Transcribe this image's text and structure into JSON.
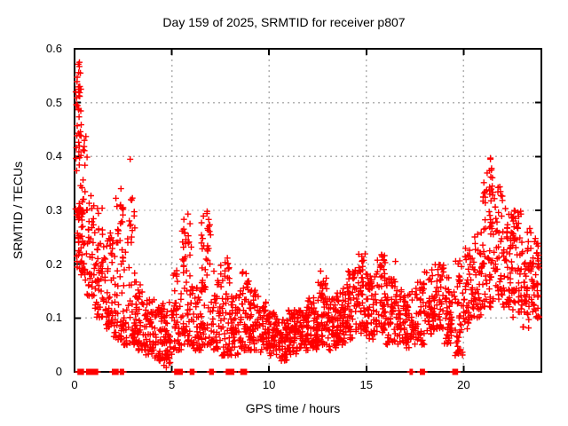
{
  "chart_data": {
    "type": "scatter",
    "title": "Day 159 of 2025, SRMTID for receiver p807",
    "xlabel": "GPS time / hours",
    "ylabel": "SRMTID / TECUs",
    "xlim": [
      0,
      24
    ],
    "ylim": [
      0,
      0.6
    ],
    "xticks": [
      0,
      5,
      10,
      15,
      20
    ],
    "yticks": [
      0,
      0.1,
      0.2,
      0.3,
      0.4,
      0.5,
      0.6
    ],
    "grid": "dashed at all major x and y ticks",
    "legend": "none",
    "marker": "plus",
    "marker_color": "#ff0000",
    "grid_color": "#b2b2b2",
    "axis_color": "#000000",
    "background": "#ffffff",
    "random_seed": 9,
    "scatter_density_bins": {
      "columns": [
        "x_start",
        "x_end",
        "y_min",
        "y_max",
        "count",
        "low_bias"
      ],
      "rows": [
        [
          0.05,
          0.35,
          0.2,
          0.575,
          45,
          1.2
        ],
        [
          0.05,
          0.5,
          0.18,
          0.31,
          30,
          1.0
        ],
        [
          0.35,
          0.65,
          0.17,
          0.46,
          25,
          1.6
        ],
        [
          0.6,
          1.0,
          0.14,
          0.33,
          40,
          1.4
        ],
        [
          1.0,
          1.5,
          0.1,
          0.31,
          50,
          1.5
        ],
        [
          1.5,
          2.0,
          0.08,
          0.26,
          50,
          1.5
        ],
        [
          2.0,
          2.5,
          0.06,
          0.33,
          50,
          1.9
        ],
        [
          2.5,
          3.1,
          0.05,
          0.3,
          50,
          2.0
        ],
        [
          3.1,
          3.6,
          0.04,
          0.17,
          50,
          1.3
        ],
        [
          3.6,
          4.1,
          0.03,
          0.14,
          50,
          1.2
        ],
        [
          4.1,
          4.6,
          0.02,
          0.13,
          45,
          1.2
        ],
        [
          4.6,
          5.0,
          0.015,
          0.13,
          40,
          1.2
        ],
        [
          5.0,
          5.5,
          0.04,
          0.19,
          45,
          1.5
        ],
        [
          5.5,
          6.0,
          0.05,
          0.28,
          50,
          1.9
        ],
        [
          6.0,
          6.5,
          0.04,
          0.16,
          45,
          1.3
        ],
        [
          6.5,
          7.0,
          0.05,
          0.29,
          50,
          1.9
        ],
        [
          7.0,
          7.5,
          0.04,
          0.19,
          45,
          1.5
        ],
        [
          7.5,
          8.0,
          0.03,
          0.22,
          45,
          1.6
        ],
        [
          8.0,
          8.5,
          0.03,
          0.15,
          45,
          1.2
        ],
        [
          8.5,
          9.0,
          0.04,
          0.19,
          45,
          1.5
        ],
        [
          9.0,
          9.5,
          0.04,
          0.16,
          50,
          1.3
        ],
        [
          9.5,
          10.0,
          0.035,
          0.13,
          50,
          1.2
        ],
        [
          10.0,
          10.5,
          0.03,
          0.11,
          50,
          1.2
        ],
        [
          10.5,
          11.0,
          0.02,
          0.1,
          50,
          1.1
        ],
        [
          11.0,
          11.5,
          0.03,
          0.115,
          55,
          1.2
        ],
        [
          11.5,
          12.0,
          0.04,
          0.12,
          55,
          1.2
        ],
        [
          12.0,
          12.5,
          0.04,
          0.14,
          55,
          1.2
        ],
        [
          12.5,
          13.0,
          0.05,
          0.19,
          50,
          1.4
        ],
        [
          13.0,
          13.5,
          0.04,
          0.14,
          55,
          1.2
        ],
        [
          13.5,
          14.0,
          0.05,
          0.16,
          55,
          1.3
        ],
        [
          14.0,
          14.5,
          0.06,
          0.19,
          55,
          1.3
        ],
        [
          14.5,
          15.0,
          0.07,
          0.22,
          50,
          1.4
        ],
        [
          15.0,
          15.5,
          0.06,
          0.19,
          55,
          1.3
        ],
        [
          15.5,
          16.0,
          0.07,
          0.22,
          50,
          1.4
        ],
        [
          16.0,
          16.5,
          0.05,
          0.18,
          50,
          1.3
        ],
        [
          16.5,
          17.0,
          0.05,
          0.16,
          45,
          1.2
        ],
        [
          17.0,
          17.5,
          0.04,
          0.15,
          45,
          1.2
        ],
        [
          17.5,
          18.0,
          0.05,
          0.17,
          45,
          1.3
        ],
        [
          18.0,
          18.5,
          0.07,
          0.19,
          45,
          1.3
        ],
        [
          18.5,
          19.0,
          0.08,
          0.2,
          45,
          1.3
        ],
        [
          19.0,
          19.5,
          0.05,
          0.18,
          45,
          1.3
        ],
        [
          19.5,
          20.0,
          0.03,
          0.22,
          45,
          1.4
        ],
        [
          20.0,
          20.5,
          0.08,
          0.23,
          45,
          1.3
        ],
        [
          20.5,
          21.0,
          0.1,
          0.26,
          45,
          1.4
        ],
        [
          21.0,
          21.5,
          0.12,
          0.37,
          45,
          1.7
        ],
        [
          21.5,
          22.0,
          0.13,
          0.35,
          48,
          1.5
        ],
        [
          22.0,
          22.5,
          0.12,
          0.31,
          48,
          1.3
        ],
        [
          22.5,
          23.0,
          0.1,
          0.3,
          48,
          1.2
        ],
        [
          23.0,
          23.5,
          0.08,
          0.27,
          45,
          1.3
        ],
        [
          23.5,
          23.9,
          0.1,
          0.25,
          40,
          1.3
        ],
        [
          0.15,
          0.3,
          0.44,
          0.575,
          8,
          1.0
        ],
        [
          2.35,
          2.5,
          0.27,
          0.35,
          8,
          1.0
        ],
        [
          2.8,
          3.0,
          0.24,
          0.33,
          8,
          1.0
        ],
        [
          5.6,
          5.85,
          0.2,
          0.3,
          9,
          1.0
        ],
        [
          6.75,
          6.95,
          0.22,
          0.31,
          9,
          1.0
        ],
        [
          7.85,
          7.98,
          0.16,
          0.22,
          6,
          1.0
        ],
        [
          8.85,
          8.95,
          0.13,
          0.18,
          5,
          1.0
        ],
        [
          12.6,
          12.8,
          0.13,
          0.19,
          7,
          1.0
        ],
        [
          14.75,
          14.9,
          0.16,
          0.21,
          6,
          1.0
        ],
        [
          15.85,
          16.0,
          0.16,
          0.215,
          6,
          1.0
        ],
        [
          21.3,
          21.5,
          0.27,
          0.4,
          12,
          1.0
        ],
        [
          22.4,
          22.7,
          0.23,
          0.3,
          12,
          1.0
        ]
      ]
    },
    "zero_value_clusters": {
      "columns": [
        "x_start",
        "x_end",
        "count"
      ],
      "rows": [
        [
          0.18,
          0.42,
          5
        ],
        [
          0.62,
          0.98,
          16
        ],
        [
          1.05,
          1.15,
          4
        ],
        [
          1.95,
          2.2,
          11
        ],
        [
          2.35,
          2.48,
          6
        ],
        [
          5.15,
          5.5,
          14
        ],
        [
          5.95,
          6.1,
          3
        ],
        [
          6.95,
          7.1,
          3
        ],
        [
          7.8,
          8.15,
          14
        ],
        [
          8.55,
          8.8,
          10
        ],
        [
          17.25,
          17.33,
          2
        ],
        [
          17.78,
          17.95,
          3
        ],
        [
          19.45,
          19.65,
          9
        ]
      ]
    },
    "outlier_points": [
      [
        0.25,
        0.575
      ],
      [
        0.3,
        0.555
      ],
      [
        0.27,
        0.53
      ],
      [
        0.33,
        0.525
      ],
      [
        2.86,
        0.395
      ],
      [
        4.6,
        0.012
      ],
      [
        4.63,
        0.022
      ],
      [
        4.67,
        0.032
      ],
      [
        4.72,
        0.008
      ],
      [
        16.5,
        0.205
      ],
      [
        21.38,
        0.395
      ],
      [
        21.44,
        0.378
      ],
      [
        21.4,
        0.362
      ],
      [
        21.47,
        0.345
      ],
      [
        21.35,
        0.33
      ],
      [
        23.8,
        0.21
      ],
      [
        23.85,
        0.2
      ]
    ]
  }
}
